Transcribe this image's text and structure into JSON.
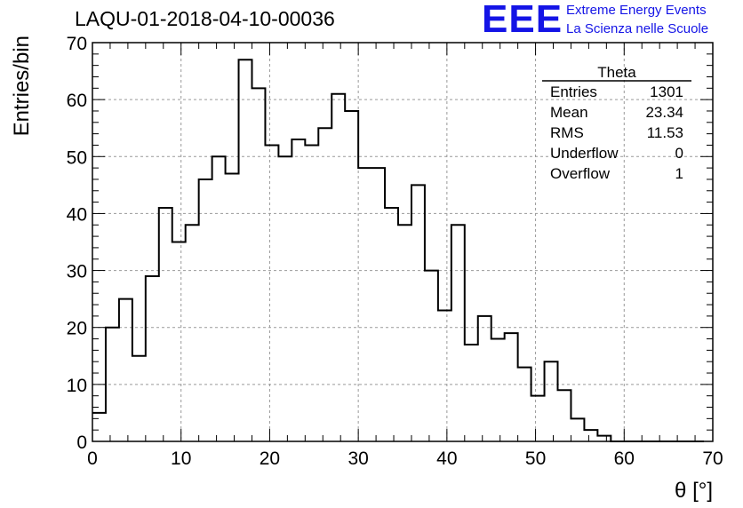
{
  "header": {
    "title": "LAQU-01-2018-04-10-00036",
    "logo_text": "EEE",
    "logo_line1": "Extreme Energy Events",
    "logo_line2": "La Scienza nelle Scuole"
  },
  "stats": {
    "name": "Theta",
    "rows": [
      {
        "label": "Entries",
        "value": "1301"
      },
      {
        "label": "Mean",
        "value": "23.34"
      },
      {
        "label": "RMS",
        "value": "11.53"
      },
      {
        "label": "Underflow",
        "value": "0"
      },
      {
        "label": "Overflow",
        "value": "1"
      }
    ]
  },
  "colors": {
    "line": "#000000",
    "grid": "#999999",
    "accent": "#1414e6"
  },
  "chart_data": {
    "type": "histogram",
    "title": "LAQU-01-2018-04-10-00036",
    "xlabel": "θ [°]",
    "ylabel": "Entries/bin",
    "xlim": [
      0,
      70
    ],
    "ylim": [
      0,
      70
    ],
    "bin_width": 1.5,
    "bin_edges_start": 0,
    "x_ticks": [
      0,
      10,
      20,
      30,
      40,
      50,
      60,
      70
    ],
    "y_ticks": [
      0,
      10,
      20,
      30,
      40,
      50,
      60,
      70
    ],
    "grid": true,
    "values": [
      5,
      20,
      25,
      15,
      29,
      41,
      35,
      38,
      46,
      50,
      47,
      67,
      62,
      52,
      50,
      53,
      52,
      55,
      61,
      58,
      48,
      48,
      41,
      38,
      45,
      30,
      23,
      38,
      17,
      22,
      18,
      19,
      13,
      8,
      14,
      9,
      4,
      2,
      1,
      0,
      0,
      0,
      0,
      0,
      0,
      0
    ]
  }
}
